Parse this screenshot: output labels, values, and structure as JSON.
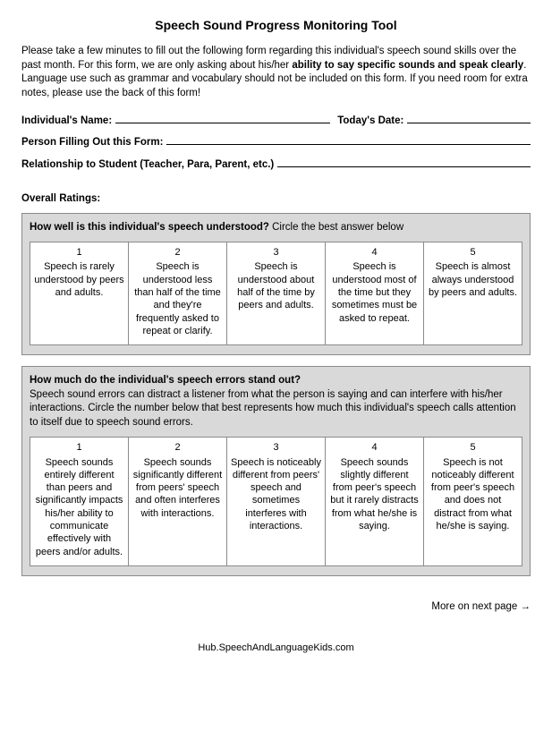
{
  "title": "Speech Sound Progress Monitoring Tool",
  "intro_pre": "Please take a few minutes to fill out the following form regarding this individual's speech sound skills over the past month.  For this form, we are only asking about his/her ",
  "intro_bold": "ability to say specific sounds and speak clearly",
  "intro_post": ".  Language use such as grammar and vocabulary should not be included on this form.  If you need room for extra notes, please use the back of this form!",
  "fields": {
    "name_label": "Individual's Name:",
    "date_label": "Today's Date:",
    "filler_label": "Person Filling Out this Form:",
    "relationship_label": "Relationship to Student (Teacher, Para, Parent, etc.)"
  },
  "overall_label": "Overall Ratings:",
  "q1": {
    "bold": "How well is this individual's speech understood?",
    "rest": " Circle the best answer below",
    "options": [
      {
        "num": "1",
        "text": "Speech is rarely understood by peers and adults."
      },
      {
        "num": "2",
        "text": "Speech is understood less than half of the time and they're frequently asked to repeat or clarify."
      },
      {
        "num": "3",
        "text": "Speech is understood about half of the time by peers and adults."
      },
      {
        "num": "4",
        "text": "Speech is understood most of the time but they sometimes must be asked to repeat."
      },
      {
        "num": "5",
        "text": "Speech is almost always understood by peers and adults."
      }
    ]
  },
  "q2": {
    "bold": "How much do the individual's speech errors stand out?",
    "rest": "Speech sound errors can distract a listener from what the person is saying and can interfere with his/her interactions.  Circle the number below that best represents how much this individual's speech calls attention to itself due to speech sound errors.",
    "options": [
      {
        "num": "1",
        "text": "Speech sounds entirely different than peers and significantly impacts his/her ability to communicate effectively with peers and/or adults."
      },
      {
        "num": "2",
        "text": "Speech sounds significantly different from peers' speech and often interferes with interactions."
      },
      {
        "num": "3",
        "text": "Speech is noticeably different from peers' speech and sometimes interferes with interactions."
      },
      {
        "num": "4",
        "text": "Speech sounds slightly different from peer's speech but it rarely distracts from what he/she is saying."
      },
      {
        "num": "5",
        "text": "Speech is not noticeably different from peer's speech and does not distract from what he/she is saying."
      }
    ]
  },
  "more": "More on next page →",
  "footer": "Hub.SpeechAndLanguageKids.com"
}
